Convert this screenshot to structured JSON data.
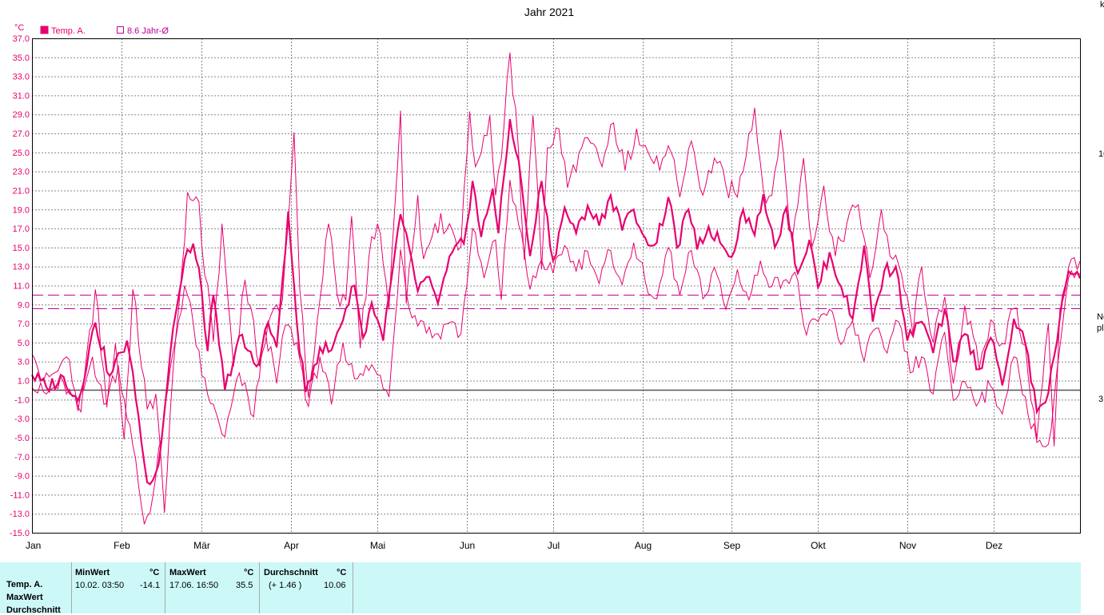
{
  "chart_data": {
    "type": "line",
    "title": "Jahr 2021",
    "ylabel": "°C",
    "ylim": [
      -15,
      37
    ],
    "yticks": [
      "37.0",
      "35.0",
      "33.0",
      "31.0",
      "29.0",
      "27.0",
      "25.0",
      "23.0",
      "21.0",
      "19.0",
      "17.0",
      "15.0",
      "13.0",
      "11.0",
      "9.0",
      "7.0",
      "5.0",
      "3.0",
      "1.0",
      "-1.0",
      "-3.0",
      "-5.0",
      "-7.0",
      "-9.0",
      "-11.0",
      "-13.0",
      "-15.0"
    ],
    "months": [
      "Jan",
      "Feb",
      "Mär",
      "Apr",
      "Mai",
      "Jun",
      "Jul",
      "Aug",
      "Sep",
      "Okt",
      "Nov",
      "Dez"
    ],
    "grid": true,
    "legend": [
      {
        "name": "Temp. A.",
        "filled": true
      },
      {
        "name": "8.6 Jahr-Ø",
        "filled": false
      }
    ],
    "reference_lines": [
      {
        "value": 10.06,
        "style": "dashed"
      },
      {
        "value": 8.6,
        "style": "dashed"
      },
      {
        "value": 0,
        "style": "solid"
      }
    ],
    "colors": {
      "series": "#e8006e",
      "ref": "#c0009a",
      "zero": "#555555",
      "grid": "#888888"
    },
    "series_keypoints": {
      "mean": [
        [
          1,
          1.6
        ],
        [
          6,
          0.3
        ],
        [
          12,
          1.4
        ],
        [
          17,
          -1.1
        ],
        [
          23,
          7.1
        ],
        [
          28,
          1.5
        ],
        [
          34,
          5.2
        ],
        [
          37,
          -0.8
        ],
        [
          41,
          -9.7
        ],
        [
          45,
          -7.8
        ],
        [
          50,
          6.5
        ],
        [
          55,
          14.8
        ],
        [
          57,
          15.4
        ],
        [
          60,
          10.3
        ],
        [
          62,
          4.1
        ],
        [
          64,
          10
        ],
        [
          68,
          0
        ],
        [
          73,
          5.7
        ],
        [
          79,
          2.5
        ],
        [
          83,
          7.1
        ],
        [
          86,
          4.5
        ],
        [
          90,
          18.8
        ],
        [
          93,
          7
        ],
        [
          96,
          -0.2
        ],
        [
          101,
          4.5
        ],
        [
          105,
          4.2
        ],
        [
          110,
          8.6
        ],
        [
          113,
          11.0
        ],
        [
          116,
          5.5
        ],
        [
          119,
          9.2
        ],
        [
          123,
          5.2
        ],
        [
          129,
          18.5
        ],
        [
          135,
          10.4
        ],
        [
          138,
          11.9
        ],
        [
          142,
          9.1
        ],
        [
          147,
          14.5
        ],
        [
          151,
          15.4
        ],
        [
          154,
          22
        ],
        [
          157,
          16.1
        ],
        [
          161,
          21.2
        ],
        [
          163,
          16.5
        ],
        [
          167,
          28.5
        ],
        [
          170,
          24.2
        ],
        [
          174,
          14.1
        ],
        [
          178,
          22.0
        ],
        [
          182,
          13.6
        ],
        [
          186,
          19.2
        ],
        [
          190,
          16.5
        ],
        [
          194,
          19.4
        ],
        [
          198,
          17.3
        ],
        [
          202,
          20.5
        ],
        [
          206,
          16.8
        ],
        [
          210,
          19
        ],
        [
          214,
          16
        ],
        [
          218,
          15.5
        ],
        [
          222,
          20.3
        ],
        [
          225,
          15.0
        ],
        [
          229,
          19.0
        ],
        [
          232,
          14.8
        ],
        [
          236,
          17.2
        ],
        [
          240,
          15.5
        ],
        [
          244,
          14.0
        ],
        [
          248,
          19.0
        ],
        [
          252,
          16.3
        ],
        [
          255,
          20.6
        ],
        [
          259,
          15.0
        ],
        [
          263,
          19.2
        ],
        [
          267,
          12.3
        ],
        [
          271,
          15.8
        ],
        [
          274,
          10.8
        ],
        [
          278,
          14.5
        ],
        [
          282,
          10.9
        ],
        [
          286,
          7.5
        ],
        [
          290,
          15.2
        ],
        [
          293,
          7.2
        ],
        [
          297,
          12.5
        ],
        [
          301,
          13.0
        ],
        [
          305,
          5.2
        ],
        [
          310,
          7.2
        ],
        [
          314,
          3.9
        ],
        [
          318,
          8.5
        ],
        [
          321,
          3.0
        ],
        [
          325,
          5.9
        ],
        [
          330,
          2.2
        ],
        [
          334,
          5.5
        ],
        [
          338,
          0.5
        ],
        [
          342,
          7.5
        ],
        [
          346,
          4.9
        ],
        [
          350,
          -2.3
        ],
        [
          354,
          -0.3
        ],
        [
          358,
          7.6
        ],
        [
          361,
          12.5
        ]
      ],
      "max": [
        [
          1,
          3.8
        ],
        [
          5,
          1
        ],
        [
          10,
          2
        ],
        [
          13,
          3.5
        ],
        [
          18,
          -2.3
        ],
        [
          23,
          10.6
        ],
        [
          27,
          -1.8
        ],
        [
          30,
          4.9
        ],
        [
          33,
          -5.2
        ],
        [
          36,
          10.6
        ],
        [
          41,
          -2
        ],
        [
          44,
          -0.4
        ],
        [
          47,
          -12.9
        ],
        [
          51,
          5.8
        ],
        [
          53,
          12.5
        ],
        [
          55,
          20.8
        ],
        [
          59,
          19.8
        ],
        [
          60,
          15.1
        ],
        [
          64,
          5.1
        ],
        [
          67,
          17.5
        ],
        [
          71,
          2.5
        ],
        [
          75,
          11.6
        ],
        [
          80,
          2.5
        ],
        [
          84,
          7.9
        ],
        [
          88,
          9.5
        ],
        [
          92,
          27.1
        ],
        [
          94,
          10.6
        ],
        [
          97,
          -0.8
        ],
        [
          101,
          9.5
        ],
        [
          104,
          17.5
        ],
        [
          107,
          10
        ],
        [
          110,
          9.5
        ],
        [
          112,
          18.3
        ],
        [
          115,
          4.4
        ],
        [
          118,
          14
        ],
        [
          121,
          17.5
        ],
        [
          125,
          8.5
        ],
        [
          129,
          29.4
        ],
        [
          131,
          9.1
        ],
        [
          135,
          20.5
        ],
        [
          137,
          13.8
        ],
        [
          141,
          17.5
        ],
        [
          146,
          17.5
        ],
        [
          150,
          15.1
        ],
        [
          153,
          29.3
        ],
        [
          155,
          23.5
        ],
        [
          160,
          28.9
        ],
        [
          162,
          20.5
        ],
        [
          164,
          24.3
        ],
        [
          167,
          35.5
        ],
        [
          170,
          25
        ],
        [
          172,
          13.7
        ],
        [
          175,
          28.9
        ],
        [
          178,
          12.7
        ],
        [
          180,
          25.5
        ],
        [
          184,
          27.5
        ],
        [
          187,
          21.3
        ],
        [
          191,
          25
        ],
        [
          195,
          26
        ],
        [
          199,
          23.5
        ],
        [
          203,
          28.1
        ],
        [
          207,
          23.1
        ],
        [
          211,
          27.5
        ],
        [
          215,
          25
        ],
        [
          219,
          23.1
        ],
        [
          223,
          25
        ],
        [
          226,
          20.3
        ],
        [
          230,
          26.2
        ],
        [
          234,
          20.5
        ],
        [
          238,
          24.4
        ],
        [
          242,
          21.5
        ],
        [
          246,
          20.3
        ],
        [
          250,
          27
        ],
        [
          252,
          29.7
        ],
        [
          255,
          21.1
        ],
        [
          258,
          20.5
        ],
        [
          261,
          27.4
        ],
        [
          265,
          15.6
        ],
        [
          269,
          24.4
        ],
        [
          272,
          15.1
        ],
        [
          276,
          21.5
        ],
        [
          280,
          14.1
        ],
        [
          284,
          17.5
        ],
        [
          288,
          19.5
        ],
        [
          292,
          11.8
        ],
        [
          296,
          19.0
        ],
        [
          299,
          14.1
        ],
        [
          303,
          12.2
        ],
        [
          307,
          5.9
        ],
        [
          310,
          13.0
        ],
        [
          314,
          5.0
        ],
        [
          318,
          9.8
        ],
        [
          321,
          0.7
        ],
        [
          325,
          8.9
        ],
        [
          330,
          2.2
        ],
        [
          334,
          7.4
        ],
        [
          338,
          4.9
        ],
        [
          342,
          8.6
        ],
        [
          346,
          4.7
        ],
        [
          350,
          -5.2
        ],
        [
          354,
          7
        ],
        [
          356,
          -5.9
        ],
        [
          358,
          8.5
        ],
        [
          362,
          13.8
        ]
      ],
      "min": [
        [
          1,
          0.3
        ],
        [
          6,
          -0.4
        ],
        [
          12,
          0.8
        ],
        [
          17,
          -2.2
        ],
        [
          22,
          3.5
        ],
        [
          26,
          -1.5
        ],
        [
          31,
          2.6
        ],
        [
          36,
          -5.8
        ],
        [
          40,
          -14.1
        ],
        [
          43,
          -11.1
        ],
        [
          46,
          -5
        ],
        [
          50,
          4
        ],
        [
          54,
          11
        ],
        [
          57,
          7.1
        ],
        [
          60,
          1.5
        ],
        [
          63,
          -1.4
        ],
        [
          68,
          -4.9
        ],
        [
          73,
          1.8
        ],
        [
          78,
          -2.8
        ],
        [
          82,
          6.5
        ],
        [
          86,
          0.7
        ],
        [
          89,
          6.8
        ],
        [
          93,
          5
        ],
        [
          97,
          -1.7
        ],
        [
          101,
          3.5
        ],
        [
          105,
          -1.5
        ],
        [
          109,
          5
        ],
        [
          113,
          1.2
        ],
        [
          117,
          2.6
        ],
        [
          121,
          1.6
        ],
        [
          125,
          -0.7
        ],
        [
          129,
          14.8
        ],
        [
          133,
          7.6
        ],
        [
          137,
          7.2
        ],
        [
          140,
          5.5
        ],
        [
          146,
          7.1
        ],
        [
          150,
          5.9
        ],
        [
          154,
          17.0
        ],
        [
          158,
          11.8
        ],
        [
          162,
          15.8
        ],
        [
          164,
          9.5
        ],
        [
          167,
          22.1
        ],
        [
          170,
          17.4
        ],
        [
          174,
          10.6
        ],
        [
          178,
          13.7
        ],
        [
          182,
          12.3
        ],
        [
          186,
          15.2
        ],
        [
          190,
          12.5
        ],
        [
          194,
          14.6
        ],
        [
          198,
          11.2
        ],
        [
          202,
          14.7
        ],
        [
          206,
          11.1
        ],
        [
          210,
          15.5
        ],
        [
          214,
          11.4
        ],
        [
          218,
          9.6
        ],
        [
          222,
          15.0
        ],
        [
          226,
          10.0
        ],
        [
          230,
          14.7
        ],
        [
          234,
          9.6
        ],
        [
          238,
          12.9
        ],
        [
          242,
          8.5
        ],
        [
          246,
          12.7
        ],
        [
          250,
          9.5
        ],
        [
          254,
          13.6
        ],
        [
          258,
          10.9
        ],
        [
          262,
          11.5
        ],
        [
          266,
          12.4
        ],
        [
          270,
          5.8
        ],
        [
          274,
          7.2
        ],
        [
          278,
          8.5
        ],
        [
          282,
          4.8
        ],
        [
          286,
          7.3
        ],
        [
          290,
          3.0
        ],
        [
          294,
          6.5
        ],
        [
          298,
          3.9
        ],
        [
          302,
          7.2
        ],
        [
          306,
          1.8
        ],
        [
          310,
          3.5
        ],
        [
          314,
          -0.4
        ],
        [
          318,
          6.1
        ],
        [
          321,
          -1.1
        ],
        [
          325,
          0.9
        ],
        [
          330,
          -1.2
        ],
        [
          334,
          0.4
        ],
        [
          338,
          -2.5
        ],
        [
          342,
          3.5
        ],
        [
          346,
          -0.7
        ],
        [
          350,
          -5.5
        ],
        [
          354,
          -5.7
        ],
        [
          358,
          4.5
        ],
        [
          361,
          11.8
        ]
      ]
    }
  },
  "stats": {
    "rows": [
      "Temp. A.",
      "MaxWert",
      "Durchschnitt"
    ],
    "min": {
      "header": "MinWert",
      "unit": "°C",
      "time": "10.02.  03:50",
      "value": "-14.1"
    },
    "max": {
      "header": "MaxWert",
      "unit": "°C",
      "time": "17.06.  16:50",
      "value": "35.5"
    },
    "avg": {
      "header": "Durchschnitt",
      "unit": "°C",
      "delta": "(+ 1.46 )",
      "value": "10.06"
    }
  },
  "edge_fragments": [
    "k",
    "10",
    "No",
    "pl",
    "3"
  ]
}
